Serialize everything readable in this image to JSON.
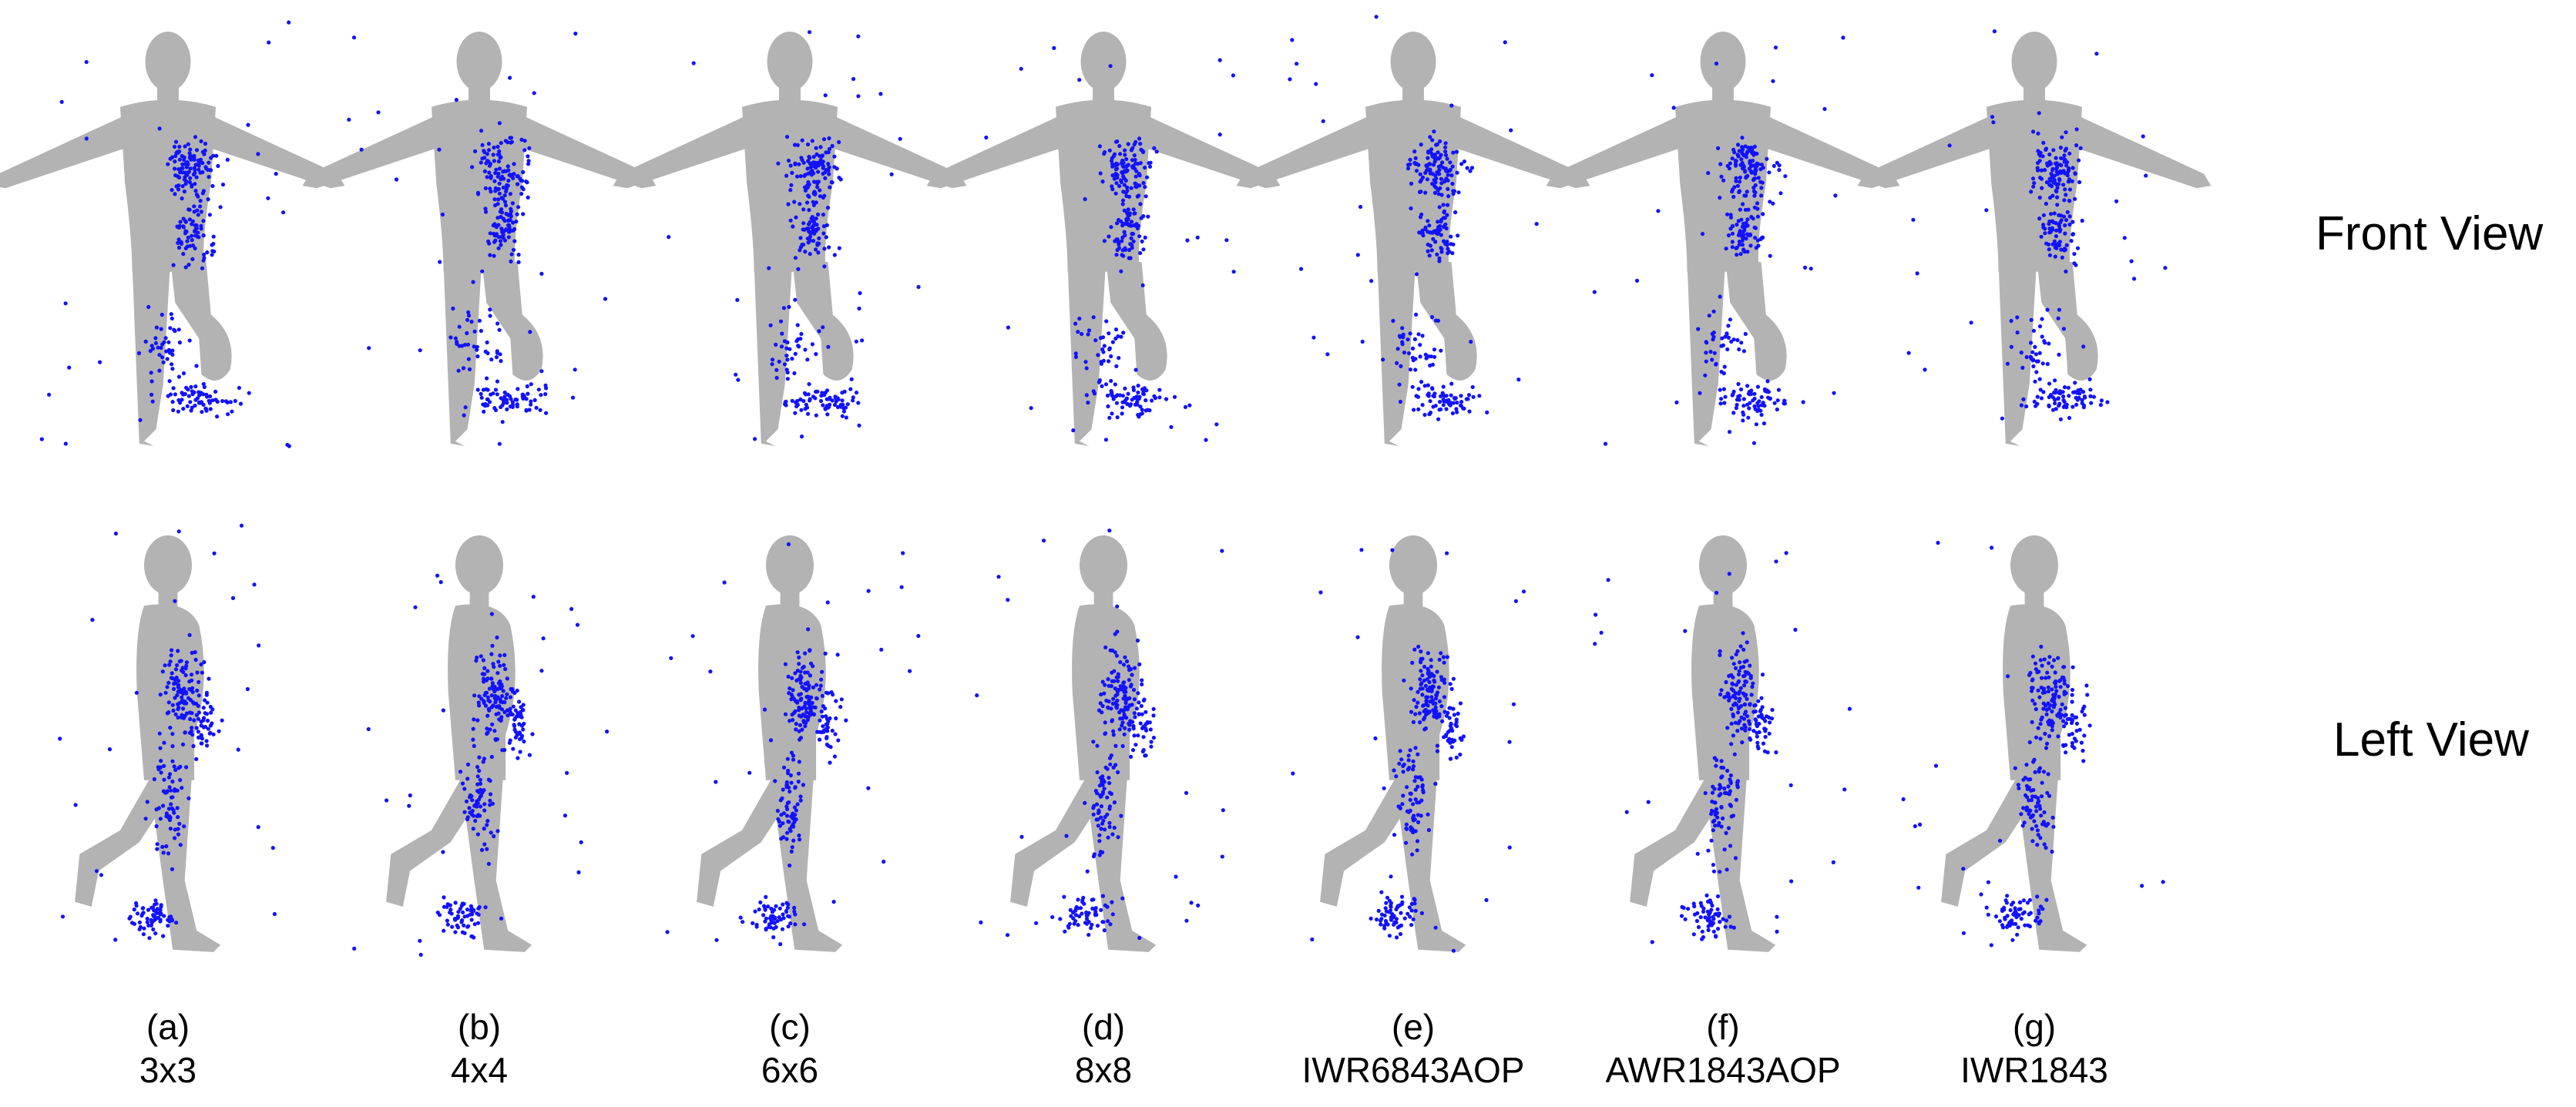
{
  "figure": {
    "row_labels": {
      "front": "Front View",
      "left": "Left View"
    },
    "panels": [
      {
        "letter": "(a)",
        "name": "3x3"
      },
      {
        "letter": "(b)",
        "name": "4x4"
      },
      {
        "letter": "(c)",
        "name": "6x6"
      },
      {
        "letter": "(d)",
        "name": "8x8"
      },
      {
        "letter": "(e)",
        "name": "IWR6843AOP"
      },
      {
        "letter": "(f)",
        "name": "AWR1843AOP"
      },
      {
        "letter": "(g)",
        "name": "IWR1843"
      }
    ],
    "colors": {
      "body": "#b3b3b3",
      "points": "#1212ff"
    }
  }
}
